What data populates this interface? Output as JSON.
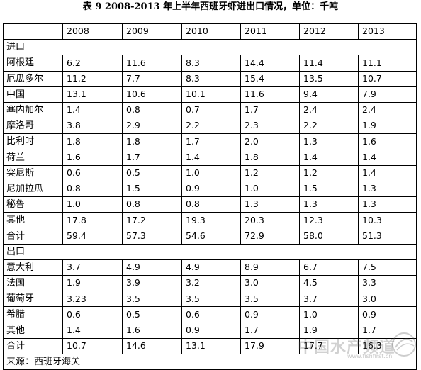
{
  "title": "表 9    2008-2013 年上半年西班牙虾进出口情况，单位：千吨",
  "years": [
    "2008",
    "2009",
    "2010",
    "2011",
    "2012",
    "2013"
  ],
  "sections": [
    {
      "label": "进口",
      "rows": [
        {
          "name": "阿根廷",
          "values": [
            "6.2",
            "11.6",
            "8.3",
            "14.4",
            "11.4",
            "11.1"
          ]
        },
        {
          "name": "厄瓜多尔",
          "values": [
            "11.2",
            "7.7",
            "8.3",
            "15.4",
            "13.5",
            "10.7"
          ]
        },
        {
          "name": "中国",
          "values": [
            "13.1",
            "10.6",
            "10.1",
            "11.6",
            "9.4",
            "7.9"
          ]
        },
        {
          "name": "塞内加尔",
          "values": [
            "1.4",
            "0.8",
            "0.7",
            "1.7",
            "2.4",
            "2.4"
          ]
        },
        {
          "name": "摩洛哥",
          "values": [
            "3.8",
            "2.9",
            "2.2",
            "2.3",
            "2.2",
            "1.9"
          ]
        },
        {
          "name": "比利时",
          "values": [
            "1.8",
            "1.8",
            "1.7",
            "2.0",
            "1.3",
            "1.6"
          ]
        },
        {
          "name": "荷兰",
          "values": [
            "1.6",
            "1.7",
            "1.4",
            "1.8",
            "1.4",
            "1.4"
          ]
        },
        {
          "name": "突尼斯",
          "values": [
            "0.6",
            "0.5",
            "1.0",
            "1.2",
            "1.2",
            "1.4"
          ]
        },
        {
          "name": "尼加拉瓜",
          "values": [
            "0.8",
            "1.5",
            "0.9",
            "1.0",
            "1.5",
            "1.3"
          ]
        },
        {
          "name": "秘鲁",
          "values": [
            "1.0",
            "0.8",
            "0.8",
            "1.3",
            "1.3",
            "1.3"
          ]
        },
        {
          "name": "其他",
          "values": [
            "17.8",
            "17.2",
            "19.3",
            "20.3",
            "12.3",
            "10.3"
          ]
        },
        {
          "name": "合计",
          "values": [
            "59.4",
            "57.3",
            "54.6",
            "72.9",
            "58.0",
            "51.3"
          ]
        }
      ]
    },
    {
      "label": "出口",
      "rows": [
        {
          "name": "意大利",
          "values": [
            "3.7",
            "4.9",
            "4.9",
            "8.9",
            "6.7",
            "7.5"
          ]
        },
        {
          "name": "法国",
          "values": [
            "1.9",
            "3.9",
            "3.2",
            "3.0",
            "4.5",
            "3.3"
          ]
        },
        {
          "name": "葡萄牙",
          "values": [
            "3.23",
            "3.5",
            "3.5",
            "3.5",
            "3.7",
            "3.0"
          ]
        },
        {
          "name": "希腊",
          "values": [
            "0.6",
            "0.5",
            "0.6",
            "0.9",
            "1.0",
            "0.9"
          ]
        },
        {
          "name": "其他",
          "values": [
            "1.4",
            "1.6",
            "0.9",
            "1.7",
            "1.9",
            "1.7"
          ]
        },
        {
          "name": "合计",
          "values": [
            "10.7",
            "14.6",
            "13.1",
            "17.9",
            "17.7",
            "16.3"
          ]
        }
      ]
    }
  ],
  "source": "来源：西班牙海关",
  "watermark": {
    "text": "中国水产频道",
    "url": "www.fishfirst.cn"
  }
}
